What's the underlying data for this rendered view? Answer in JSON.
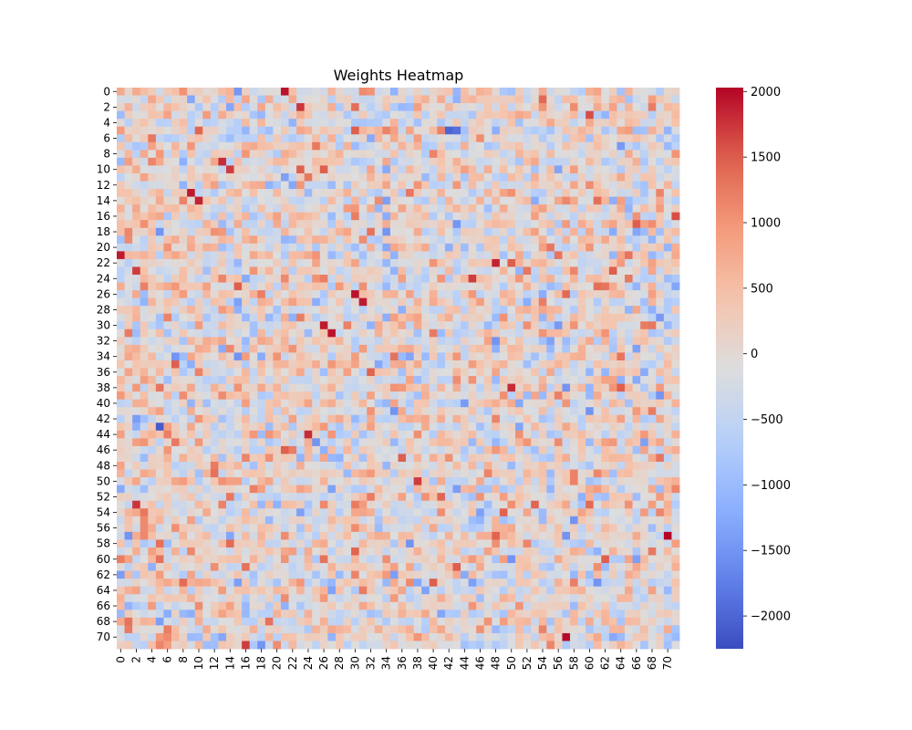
{
  "chart_data": {
    "type": "heatmap",
    "title": "Weights Heatmap",
    "rows": 72,
    "cols": 72,
    "x_tick_labels": [
      "0",
      "2",
      "4",
      "6",
      "8",
      "10",
      "12",
      "14",
      "16",
      "18",
      "20",
      "22",
      "24",
      "26",
      "28",
      "30",
      "32",
      "34",
      "36",
      "38",
      "40",
      "42",
      "44",
      "46",
      "48",
      "50",
      "52",
      "54",
      "56",
      "58",
      "60",
      "62",
      "64",
      "66",
      "68",
      "70"
    ],
    "y_tick_labels": [
      "0",
      "2",
      "4",
      "6",
      "8",
      "10",
      "12",
      "14",
      "16",
      "18",
      "20",
      "22",
      "24",
      "26",
      "28",
      "30",
      "32",
      "34",
      "36",
      "38",
      "40",
      "42",
      "44",
      "46",
      "48",
      "50",
      "52",
      "54",
      "56",
      "58",
      "60",
      "62",
      "64",
      "66",
      "68",
      "70"
    ],
    "colorbar": {
      "vmin": -2250,
      "vmax": 2030,
      "ticks": [
        2000,
        1500,
        1000,
        500,
        0,
        -500,
        -1000,
        -1500,
        -2000
      ],
      "tick_labels": [
        "2000",
        "1500",
        "1000",
        "500",
        "0",
        "−500",
        "−1000",
        "−1500",
        "−2000"
      ],
      "colormap": "coolwarm"
    },
    "notable_cells": [
      {
        "row": 0,
        "col": 21,
        "value": 1950
      },
      {
        "row": 2,
        "col": 23,
        "value": 1750
      },
      {
        "row": 1,
        "col": 54,
        "value": 1400
      },
      {
        "row": 3,
        "col": 60,
        "value": 1600
      },
      {
        "row": 5,
        "col": 42,
        "value": -2000
      },
      {
        "row": 5,
        "col": 43,
        "value": -1900
      },
      {
        "row": 9,
        "col": 13,
        "value": 1800
      },
      {
        "row": 10,
        "col": 14,
        "value": 1700
      },
      {
        "row": 13,
        "col": 9,
        "value": 1900
      },
      {
        "row": 14,
        "col": 10,
        "value": 1850
      },
      {
        "row": 16,
        "col": 71,
        "value": 1600
      },
      {
        "row": 21,
        "col": 0,
        "value": 1900
      },
      {
        "row": 22,
        "col": 48,
        "value": 1850
      },
      {
        "row": 23,
        "col": 2,
        "value": 1700
      },
      {
        "row": 24,
        "col": 45,
        "value": 1700
      },
      {
        "row": 26,
        "col": 30,
        "value": 1950
      },
      {
        "row": 27,
        "col": 31,
        "value": 1900
      },
      {
        "row": 30,
        "col": 26,
        "value": 1900
      },
      {
        "row": 31,
        "col": 27,
        "value": 1950
      },
      {
        "row": 38,
        "col": 50,
        "value": 1800
      },
      {
        "row": 43,
        "col": 5,
        "value": -2100
      },
      {
        "row": 44,
        "col": 24,
        "value": 1800
      },
      {
        "row": 50,
        "col": 38,
        "value": 1700
      },
      {
        "row": 53,
        "col": 2,
        "value": 1750
      },
      {
        "row": 57,
        "col": 70,
        "value": 2030
      },
      {
        "row": 70,
        "col": 57,
        "value": 2000
      },
      {
        "row": 71,
        "col": 16,
        "value": 1700
      }
    ],
    "seed": 42,
    "value_spread": 550
  }
}
